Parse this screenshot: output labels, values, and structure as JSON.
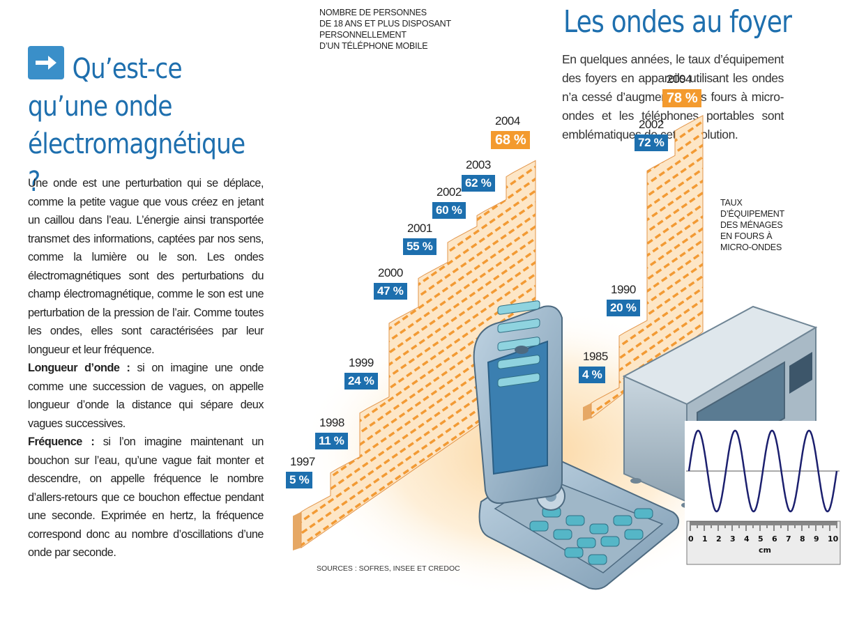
{
  "left": {
    "title_line1": "Qu’est-ce",
    "title_line2": "qu’une onde",
    "title_line3": "électromagnétique ?",
    "paragraph1": "Une onde est une perturbation qui se déplace, comme la petite vague que vous créez en jetant un caillou dans l’eau. L’énergie ainsi transportée transmet des informations, captées par nos sens, comme la lumière ou le son. Les ondes électromagnétiques sont des perturbations du champ électromagnétique, comme le son est une perturbation de la pression de l’air. Comme toutes les ondes, elles sont caractérisées par leur longueur et leur fréquence.",
    "term1": "Longueur d’onde :",
    "def1": " si on imagine une onde comme une succession de vagues, on appelle longueur d’onde la distance qui sépare deux vagues successives.",
    "term2": "Fréquence :",
    "def2": " si l’on imagine maintenant un bouchon sur l’eau, qu’une vague fait monter et descendre, on appelle fréquence le nombre d’allers-retours que ce bouchon effectue pendant une seconde. Exprimée en hertz, la fréquence correspond donc au nombre d’oscillations d’une onde par seconde."
  },
  "right": {
    "title": "Les ondes au foyer",
    "intro": "En quelques années, le taux d’équipement des foyers en appareils utilisant les ondes n’a cessé d’augmenter. Les fours à micro-ondes et les téléphones portables sont emblématiques de cette évolution."
  },
  "sources": "SOURCES : SOFRES, INSEE ET CREDOC",
  "colors": {
    "blue": "#1d6fae",
    "orange": "#f39a2e",
    "stair_fill": "#fde3c2",
    "stair_stripe": "#f0972f"
  },
  "chart_data": [
    {
      "type": "bar",
      "caption_lines": [
        "NOMBRE DE PERSONNES",
        "DE 18 ANS ET PLUS DISPOSANT",
        "PERSONNELLEMENT",
        "D’UN TÉLÉPHONE MOBILE"
      ],
      "categories": [
        "1997",
        "1998",
        "1999",
        "2000",
        "2001",
        "2002",
        "2003",
        "2004"
      ],
      "values": [
        5,
        11,
        24,
        47,
        55,
        60,
        62,
        68
      ],
      "labels": [
        "5 %",
        "11 %",
        "24 %",
        "47 %",
        "55 %",
        "60 %",
        "62 %",
        "68 %"
      ],
      "highlight": "2004"
    },
    {
      "type": "bar",
      "caption_lines": [
        "TAUX",
        "D’ÉQUIPEMENT",
        "DES MÉNAGES",
        "EN FOURS À",
        "MICRO-ONDES"
      ],
      "categories": [
        "1985",
        "1990",
        "2002",
        "2004"
      ],
      "values": [
        4,
        20,
        72,
        78
      ],
      "labels": [
        "4 %",
        "20 %",
        "72 %",
        "78 %"
      ],
      "highlight": "2004"
    },
    {
      "type": "line",
      "description_kind": "sine-wave-with-ruler",
      "ruler_ticks": [
        "0",
        "1",
        "2",
        "3",
        "4",
        "5",
        "6",
        "7",
        "8",
        "9",
        "10"
      ],
      "ruler_unit": "cm",
      "wave_cycles": 4
    }
  ]
}
